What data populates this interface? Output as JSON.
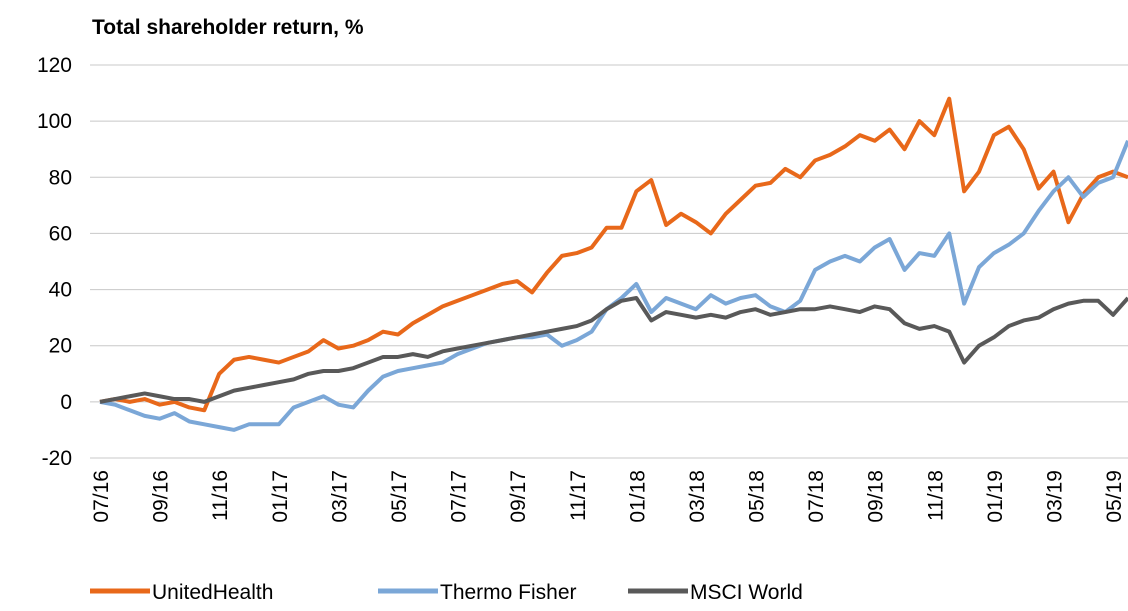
{
  "chart_data": {
    "type": "line",
    "title": "Total shareholder return, %",
    "categories": [
      "07/16",
      null,
      null,
      null,
      "09/16",
      null,
      null,
      null,
      "11/16",
      null,
      null,
      null,
      "01/17",
      null,
      null,
      null,
      "03/17",
      null,
      null,
      null,
      "05/17",
      null,
      null,
      null,
      "07/17",
      null,
      null,
      null,
      "09/17",
      null,
      null,
      null,
      "11/17",
      null,
      null,
      null,
      "01/18",
      null,
      null,
      null,
      "03/18",
      null,
      null,
      null,
      "05/18",
      null,
      null,
      null,
      "07/18",
      null,
      null,
      null,
      "09/18",
      null,
      null,
      null,
      "11/18",
      null,
      null,
      null,
      "01/19",
      null,
      null,
      null,
      "03/19",
      null,
      null,
      null,
      "05/19",
      null
    ],
    "series": [
      {
        "name": "UnitedHealth",
        "color": "#e8681a",
        "values": [
          0,
          1,
          0,
          1,
          -1,
          0,
          -2,
          -3,
          10,
          15,
          16,
          15,
          14,
          16,
          18,
          22,
          19,
          20,
          22,
          25,
          24,
          28,
          31,
          34,
          36,
          38,
          40,
          42,
          43,
          39,
          46,
          52,
          53,
          55,
          62,
          62,
          75,
          79,
          63,
          67,
          64,
          60,
          67,
          72,
          77,
          78,
          83,
          80,
          86,
          88,
          91,
          95,
          93,
          97,
          90,
          100,
          95,
          108,
          75,
          82,
          95,
          98,
          90,
          76,
          82,
          64,
          74,
          80,
          82,
          80
        ]
      },
      {
        "name": "Thermo Fisher",
        "color": "#7ba7d7",
        "values": [
          0,
          -1,
          -3,
          -5,
          -6,
          -4,
          -7,
          -8,
          -9,
          -10,
          -8,
          -8,
          -8,
          -2,
          0,
          2,
          -1,
          -2,
          4,
          9,
          11,
          12,
          13,
          14,
          17,
          19,
          21,
          22,
          23,
          23,
          24,
          20,
          22,
          25,
          33,
          37,
          42,
          32,
          37,
          35,
          33,
          38,
          35,
          37,
          38,
          34,
          32,
          36,
          47,
          50,
          52,
          50,
          55,
          58,
          47,
          53,
          52,
          60,
          35,
          48,
          53,
          56,
          60,
          68,
          75,
          80,
          73,
          78,
          80,
          93
        ]
      },
      {
        "name": "MSCI World",
        "color": "#595959",
        "values": [
          0,
          1,
          2,
          3,
          2,
          1,
          1,
          0,
          2,
          4,
          5,
          6,
          7,
          8,
          10,
          11,
          11,
          12,
          14,
          16,
          16,
          17,
          16,
          18,
          19,
          20,
          21,
          22,
          23,
          24,
          25,
          26,
          27,
          29,
          33,
          36,
          37,
          29,
          32,
          31,
          30,
          31,
          30,
          32,
          33,
          31,
          32,
          33,
          33,
          34,
          33,
          32,
          34,
          33,
          28,
          26,
          27,
          25,
          14,
          20,
          23,
          27,
          29,
          30,
          33,
          35,
          36,
          36,
          31,
          37
        ]
      }
    ],
    "ylim": [
      -20,
      120
    ],
    "yticks": [
      -20,
      0,
      20,
      40,
      60,
      80,
      100,
      120
    ],
    "grid": true
  }
}
